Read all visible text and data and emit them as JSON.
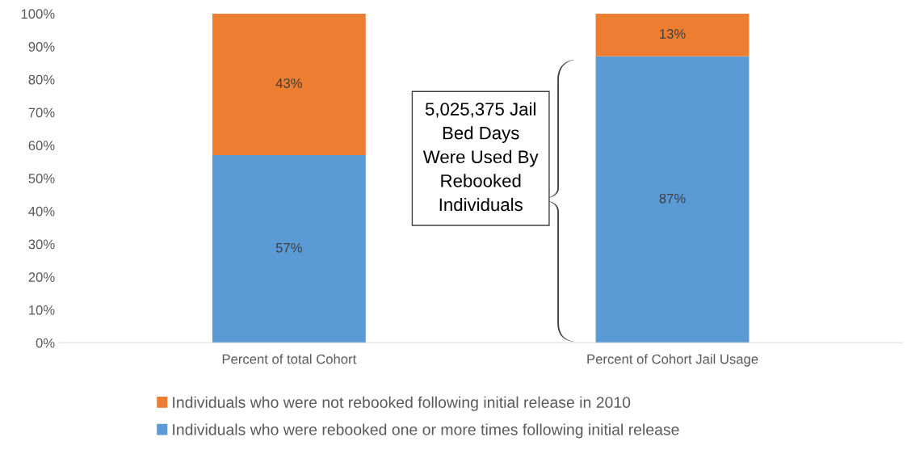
{
  "chart_data": {
    "type": "bar",
    "stacked": true,
    "categories": [
      "Percent of total Cohort",
      "Percent of Cohort Jail Usage"
    ],
    "series": [
      {
        "name": "Individuals who were rebooked one or more times following initial release",
        "color": "#5b9bd5",
        "values": [
          57,
          87
        ],
        "value_labels": [
          "57%",
          "87%"
        ]
      },
      {
        "name": "Individuals who were not rebooked following initial release in 2010",
        "color": "#ed7d31",
        "values": [
          43,
          13
        ],
        "value_labels": [
          "43%",
          "13%"
        ]
      }
    ],
    "ylim": [
      0,
      100
    ],
    "yticks": [
      {
        "value": 0,
        "label": "0%"
      },
      {
        "value": 10,
        "label": "10%"
      },
      {
        "value": 20,
        "label": "20%"
      },
      {
        "value": 30,
        "label": "30%"
      },
      {
        "value": 40,
        "label": "40%"
      },
      {
        "value": 50,
        "label": "50%"
      },
      {
        "value": 60,
        "label": "60%"
      },
      {
        "value": 70,
        "label": "70%"
      },
      {
        "value": 80,
        "label": "80%"
      },
      {
        "value": 90,
        "label": "90%"
      },
      {
        "value": 100,
        "label": "100%"
      }
    ],
    "annotations": [
      "5,025,375 Jail\nBed Days\nWere Used By\nRebooked\nIndividuals"
    ],
    "grid": false,
    "legend": "bottom"
  }
}
